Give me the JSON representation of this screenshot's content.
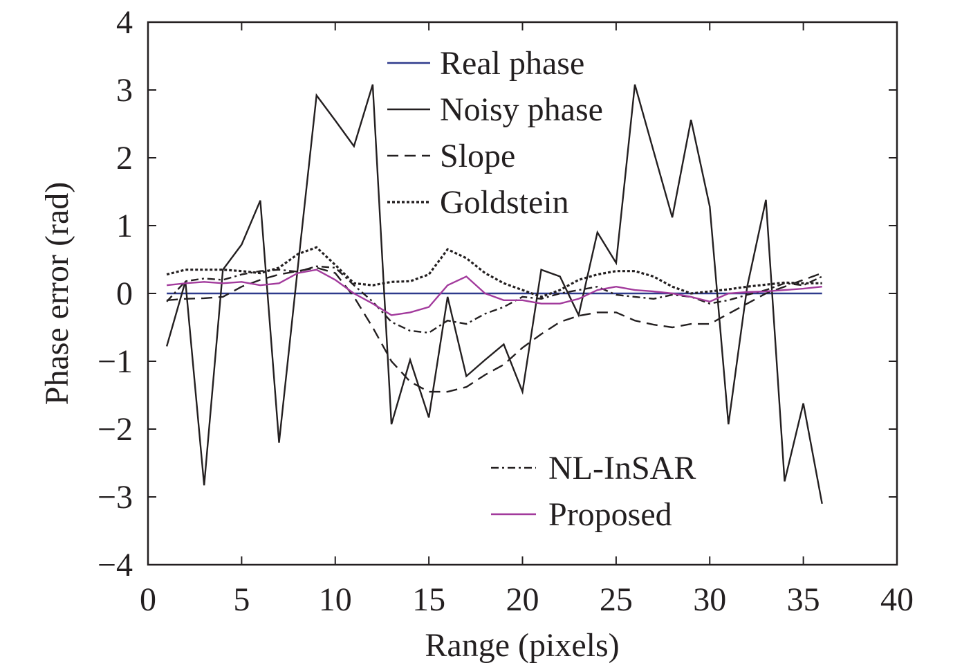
{
  "chart_data": {
    "type": "line",
    "title": "",
    "xlabel": "Range (pixels)",
    "ylabel": "Phase error (rad)",
    "xlim": [
      0,
      40
    ],
    "ylim": [
      -4,
      4
    ],
    "xticks": [
      0,
      5,
      10,
      15,
      20,
      25,
      30,
      35,
      40
    ],
    "yticks": [
      -4,
      -3,
      -2,
      -1,
      0,
      1,
      2,
      3,
      4
    ],
    "xtick_labels": [
      "0",
      "5",
      "10",
      "15",
      "20",
      "25",
      "30",
      "35",
      "40"
    ],
    "ytick_labels": [
      "−4",
      "−3",
      "−2",
      "−1",
      "0",
      "1",
      "2",
      "3",
      "4"
    ],
    "grid": false,
    "x": [
      1,
      2,
      3,
      4,
      5,
      6,
      7,
      8,
      9,
      10,
      11,
      12,
      13,
      14,
      15,
      16,
      17,
      18,
      19,
      20,
      21,
      22,
      23,
      24,
      25,
      26,
      27,
      28,
      29,
      30,
      31,
      32,
      33,
      34,
      35,
      36
    ],
    "series": [
      {
        "name": "Real phase",
        "color": "#2e3a8c",
        "dash": "solid",
        "values": [
          0,
          0,
          0,
          0,
          0,
          0,
          0,
          0,
          0,
          0,
          0,
          0,
          0,
          0,
          0,
          0,
          0,
          0,
          0,
          0,
          0,
          0,
          0,
          0,
          0,
          0,
          0,
          0,
          0,
          0,
          0,
          0,
          0,
          0,
          0,
          0
        ]
      },
      {
        "name": "Noisy phase",
        "color": "#231f20",
        "dash": "solid",
        "values": [
          -0.78,
          0.18,
          -2.83,
          0.35,
          0.72,
          1.37,
          -2.2,
          0.38,
          2.92,
          2.55,
          2.17,
          3.08,
          -1.93,
          -0.98,
          -1.83,
          -0.05,
          -1.22,
          -0.98,
          -0.75,
          -1.45,
          0.35,
          0.25,
          -0.32,
          0.9,
          0.45,
          3.08,
          2.1,
          1.12,
          2.56,
          1.28,
          -1.93,
          0.1,
          1.38,
          -2.77,
          -1.62,
          -3.1
        ]
      },
      {
        "name": "Slope",
        "color": "#231f20",
        "dash": "dashed",
        "values": [
          -0.1,
          -0.08,
          -0.07,
          -0.05,
          0.1,
          0.2,
          0.28,
          0.33,
          0.38,
          0.3,
          -0.05,
          -0.5,
          -1.0,
          -1.3,
          -1.45,
          -1.45,
          -1.38,
          -1.2,
          -1.05,
          -0.8,
          -0.6,
          -0.42,
          -0.33,
          -0.28,
          -0.28,
          -0.4,
          -0.46,
          -0.5,
          -0.45,
          -0.45,
          -0.3,
          -0.15,
          0.0,
          0.1,
          0.2,
          0.3
        ]
      },
      {
        "name": "Goldstein",
        "color": "#231f20",
        "dash": "dotted",
        "values": [
          0.28,
          0.35,
          0.35,
          0.35,
          0.33,
          0.3,
          0.38,
          0.58,
          0.68,
          0.42,
          0.15,
          0.12,
          0.17,
          0.18,
          0.28,
          0.65,
          0.52,
          0.3,
          0.15,
          0.05,
          -0.05,
          0.05,
          0.2,
          0.28,
          0.33,
          0.33,
          0.25,
          0.1,
          0.0,
          0.03,
          0.06,
          0.1,
          0.13,
          0.16,
          0.15,
          0.15
        ]
      },
      {
        "name": "NL-InSAR",
        "color": "#231f20",
        "dash": "dashdot",
        "values": [
          -0.12,
          0.18,
          0.22,
          0.2,
          0.28,
          0.33,
          0.35,
          0.32,
          0.4,
          0.38,
          0.12,
          -0.12,
          -0.42,
          -0.55,
          -0.58,
          -0.4,
          -0.45,
          -0.3,
          -0.2,
          -0.05,
          -0.08,
          0.0,
          0.05,
          0.1,
          -0.02,
          -0.05,
          -0.08,
          -0.02,
          -0.05,
          -0.15,
          -0.1,
          -0.02,
          0.05,
          0.15,
          0.12,
          0.25
        ]
      },
      {
        "name": "Proposed",
        "color": "#a23a9c",
        "dash": "solid",
        "values": [
          0.12,
          0.15,
          0.17,
          0.15,
          0.17,
          0.12,
          0.15,
          0.3,
          0.35,
          0.2,
          0.0,
          -0.15,
          -0.32,
          -0.28,
          -0.2,
          0.12,
          0.25,
          0.0,
          -0.1,
          -0.1,
          -0.15,
          -0.15,
          -0.08,
          0.05,
          0.1,
          0.05,
          0.03,
          0.0,
          -0.05,
          -0.12,
          0.0,
          0.02,
          0.03,
          0.05,
          0.07,
          0.1
        ]
      }
    ],
    "legend": {
      "placement": "top-center and lower-right",
      "groups": [
        [
          "Real phase",
          "Noisy phase",
          "Slope",
          "Goldstein"
        ],
        [
          "NL-InSAR",
          "Proposed"
        ]
      ]
    }
  }
}
